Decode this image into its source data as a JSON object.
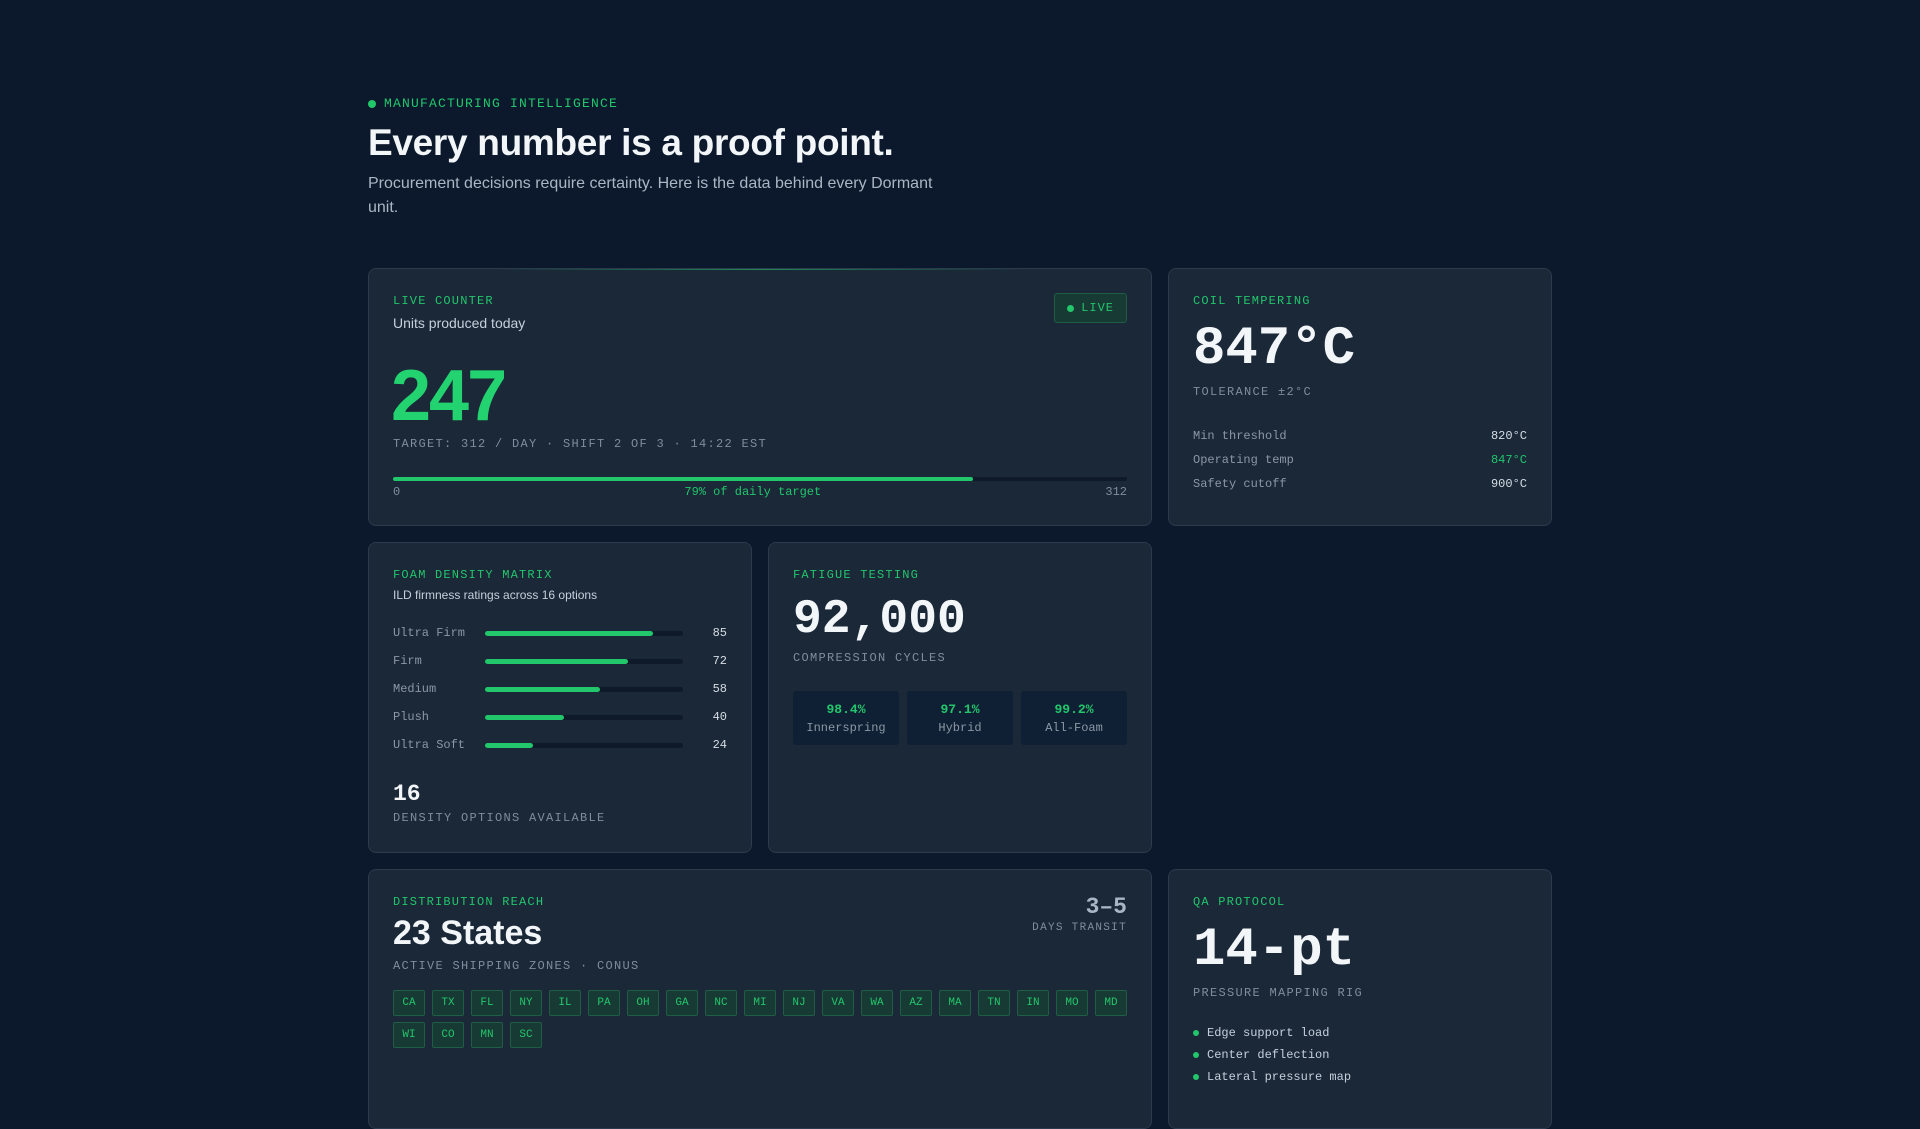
{
  "header": {
    "eyebrow": "MANUFACTURING INTELLIGENCE",
    "title": "Every number is a proof point.",
    "subtitle": "Procurement decisions require certainty. Here is the data behind every Dormant unit."
  },
  "colors": {
    "background": "#0c192c",
    "card": "#1a2838",
    "accent": "#22c66b"
  },
  "live_counter": {
    "label": "LIVE COUNTER",
    "subtitle": "Units produced today",
    "badge": "LIVE",
    "value": "247",
    "target_line": "TARGET: 312 / DAY · SHIFT 2 OF 3 · 14:22 EST",
    "progress_fraction": 0.79,
    "scale_min": "0",
    "scale_caption": "79% of daily target",
    "scale_max": "312"
  },
  "coil": {
    "label": "COIL TEMPERING",
    "value": "847°C",
    "tolerance": "TOLERANCE ±2°C",
    "rows": [
      {
        "key": "Min threshold",
        "value": "820°C"
      },
      {
        "key": "Operating temp",
        "value": "847°C"
      },
      {
        "key": "Safety cutoff",
        "value": "900°C"
      }
    ]
  },
  "foam": {
    "label": "FOAM DENSITY MATRIX",
    "subtitle": "ILD firmness ratings across 16 options",
    "bars": [
      {
        "label": "Ultra Firm",
        "value": "85"
      },
      {
        "label": "Firm",
        "value": "72"
      },
      {
        "label": "Medium",
        "value": "58"
      },
      {
        "label": "Plush",
        "value": "40"
      },
      {
        "label": "Ultra Soft",
        "value": "24"
      }
    ],
    "count": "16",
    "count_label": "DENSITY OPTIONS AVAILABLE"
  },
  "fatigue": {
    "label": "FATIGUE TESTING",
    "value": "92,000",
    "value_label": "COMPRESSION CYCLES",
    "tiles": [
      {
        "pct": "98.4%",
        "name": "Innerspring"
      },
      {
        "pct": "97.1%",
        "name": "Hybrid"
      },
      {
        "pct": "99.2%",
        "name": "All-Foam"
      }
    ]
  },
  "distribution": {
    "label": "DISTRIBUTION REACH",
    "value": "23 States",
    "subtitle": "ACTIVE SHIPPING ZONES · CONUS",
    "transit_value": "3–5",
    "transit_label": "DAYS TRANSIT",
    "states": [
      "CA",
      "TX",
      "FL",
      "NY",
      "IL",
      "PA",
      "OH",
      "GA",
      "NC",
      "MI",
      "NJ",
      "VA",
      "WA",
      "AZ",
      "MA",
      "TN",
      "IN",
      "MO",
      "MD",
      "WI",
      "CO",
      "MN",
      "SC"
    ]
  },
  "qa": {
    "label": "QA PROTOCOL",
    "value": "14-pt",
    "value_label": "PRESSURE MAPPING RIG",
    "items": [
      "Edge support load",
      "Center deflection",
      "Lateral pressure map"
    ]
  }
}
